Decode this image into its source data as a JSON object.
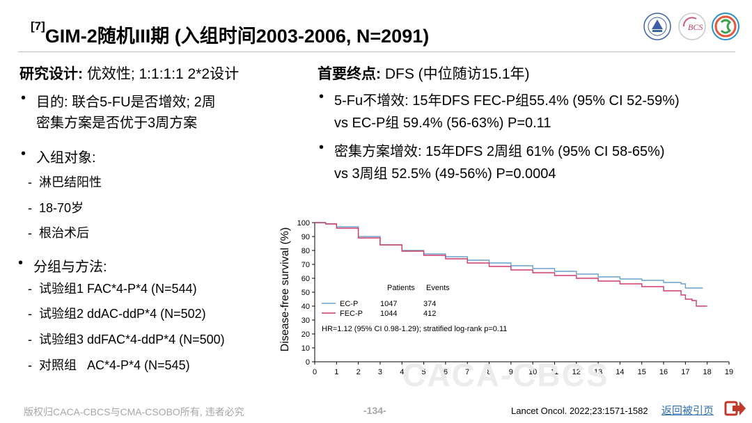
{
  "slide": {
    "ref": "[7]",
    "title": "GIM-2随机III期 (入组时间2003-2006, N=2091)"
  },
  "left": {
    "heading_bold": "研究设计:",
    "heading_rest": " 优效性; 1:1:1:1 2*2设计",
    "purpose_line1": "目的: 联合5-FU是否增效; 2周",
    "purpose_line2": "密集方案是否优于3周方案",
    "subjects_label": "入组对象:",
    "subjects": [
      "淋巴结阳性",
      "18-70岁",
      "根治术后"
    ],
    "groups_label": "分组与方法:",
    "groups": [
      "试验组1 FAC*4-P*4 (N=544)",
      "试验组2 ddAC-ddP*4 (N=502)",
      "试验组3 ddFAC*4-ddP*4 (N=500)",
      "对照组   AC*4-P*4 (N=545)"
    ]
  },
  "right": {
    "heading_bold": "首要终点:",
    "heading_rest": " DFS (中位随访15.1年)",
    "b1_line1": "5-Fu不增效: 15年DFS FEC-P组55.4% (95% CI 52-59%)",
    "b1_line2": "vs EC-P组 59.4% (56-63%) P=0.11",
    "b2_line1": "密集方案增效: 15年DFS 2周组 61% (95% CI 58-65%)",
    "b2_line2": "vs 3周组 52.5% (49-56%) P=0.0004"
  },
  "chart_data": {
    "type": "line",
    "ylabel": "Disease-free survival (%)",
    "xlabel": "",
    "xlim": [
      0,
      19
    ],
    "ylim": [
      0,
      100
    ],
    "x_ticks": [
      "0",
      "1",
      "2",
      "3",
      "4",
      "5",
      "6",
      "7",
      "8",
      "9",
      "10",
      "11",
      "12",
      "13",
      "14",
      "15",
      "16",
      "17",
      "18",
      "19"
    ],
    "y_ticks": [
      "0",
      "10",
      "20",
      "30",
      "40",
      "50",
      "60",
      "70",
      "80",
      "90",
      "100"
    ],
    "table_header_patients": "Patients",
    "table_header_events": "Events",
    "annotation": "HR=1.12 (95% CI 0.98-1.29); stratified log-rank p=0.11",
    "series": [
      {
        "name": "EC-P",
        "patients": "1047",
        "events": "374",
        "color": "#6a9fcb",
        "points": [
          [
            0,
            100
          ],
          [
            0.5,
            99.2
          ],
          [
            1,
            97
          ],
          [
            2,
            90
          ],
          [
            3,
            84
          ],
          [
            4,
            80
          ],
          [
            5,
            77.5
          ],
          [
            6,
            75.5
          ],
          [
            7,
            73
          ],
          [
            8,
            71
          ],
          [
            9,
            69
          ],
          [
            10,
            67
          ],
          [
            11,
            65
          ],
          [
            12,
            63
          ],
          [
            13,
            61
          ],
          [
            14,
            59.5
          ],
          [
            15,
            58.5
          ],
          [
            16,
            57
          ],
          [
            16.8,
            56
          ],
          [
            17,
            53
          ],
          [
            17.8,
            53
          ]
        ]
      },
      {
        "name": "FEC-P",
        "patients": "1044",
        "events": "412",
        "color": "#d23a6a",
        "points": [
          [
            0,
            100
          ],
          [
            0.5,
            99
          ],
          [
            1,
            96
          ],
          [
            2,
            89
          ],
          [
            3,
            84
          ],
          [
            4,
            79.5
          ],
          [
            5,
            76.5
          ],
          [
            6,
            74
          ],
          [
            7,
            71
          ],
          [
            8,
            68.5
          ],
          [
            9,
            66
          ],
          [
            10,
            64
          ],
          [
            11,
            62
          ],
          [
            12,
            60
          ],
          [
            13,
            58
          ],
          [
            14,
            56
          ],
          [
            15,
            54
          ],
          [
            16,
            51
          ],
          [
            16.8,
            48
          ],
          [
            17,
            45
          ],
          [
            17.3,
            44
          ],
          [
            17.5,
            40
          ],
          [
            18,
            40
          ]
        ]
      }
    ]
  },
  "footer": {
    "copyright": "版权归CACA-CBCS与CMA-CSOBO所有, 违者必究",
    "page": "-134-",
    "watermark": "CACA-CBCS",
    "citation": "Lancet Oncol. 2022;23:1571-1582",
    "back_link": "返回被引页"
  },
  "icons": {
    "back": "arrow-right-icon",
    "logo1": "university-emblem-icon",
    "logo2": "bcs-logo-icon",
    "logo3": "caca-logo-icon"
  }
}
